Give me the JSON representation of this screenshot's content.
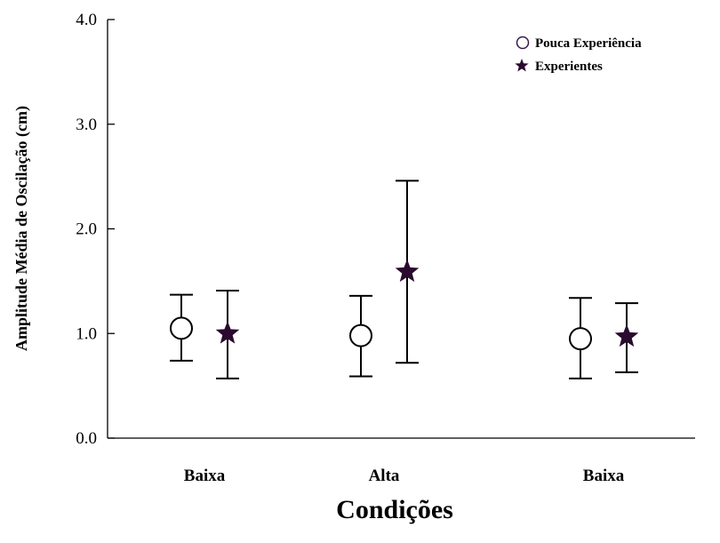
{
  "chart_data": {
    "type": "scatter",
    "categories": [
      "Baixa",
      "Alta",
      "Baixa"
    ],
    "xlabel": "Condições",
    "ylabel": "Amplitude Média de Oscilação (cm)",
    "ylim": [
      0,
      4
    ],
    "y_ticks": [
      "0.0",
      "1.0",
      "2.0",
      "3.0",
      "4.0"
    ],
    "grid": false,
    "legend_position": "top-right",
    "series": [
      {
        "name": "Pouca Experiência",
        "marker": "open-circle",
        "color": "#3a1a4a",
        "values": [
          1.05,
          0.98,
          0.95
        ],
        "error_low": [
          0.74,
          0.59,
          0.57
        ],
        "error_high": [
          1.37,
          1.36,
          1.34
        ]
      },
      {
        "name": "Experientes",
        "marker": "filled-star",
        "color": "#2a0a2e",
        "values": [
          1.0,
          1.59,
          0.97
        ],
        "error_low": [
          0.57,
          0.72,
          0.63
        ],
        "error_high": [
          1.41,
          2.46,
          1.29
        ]
      }
    ]
  }
}
